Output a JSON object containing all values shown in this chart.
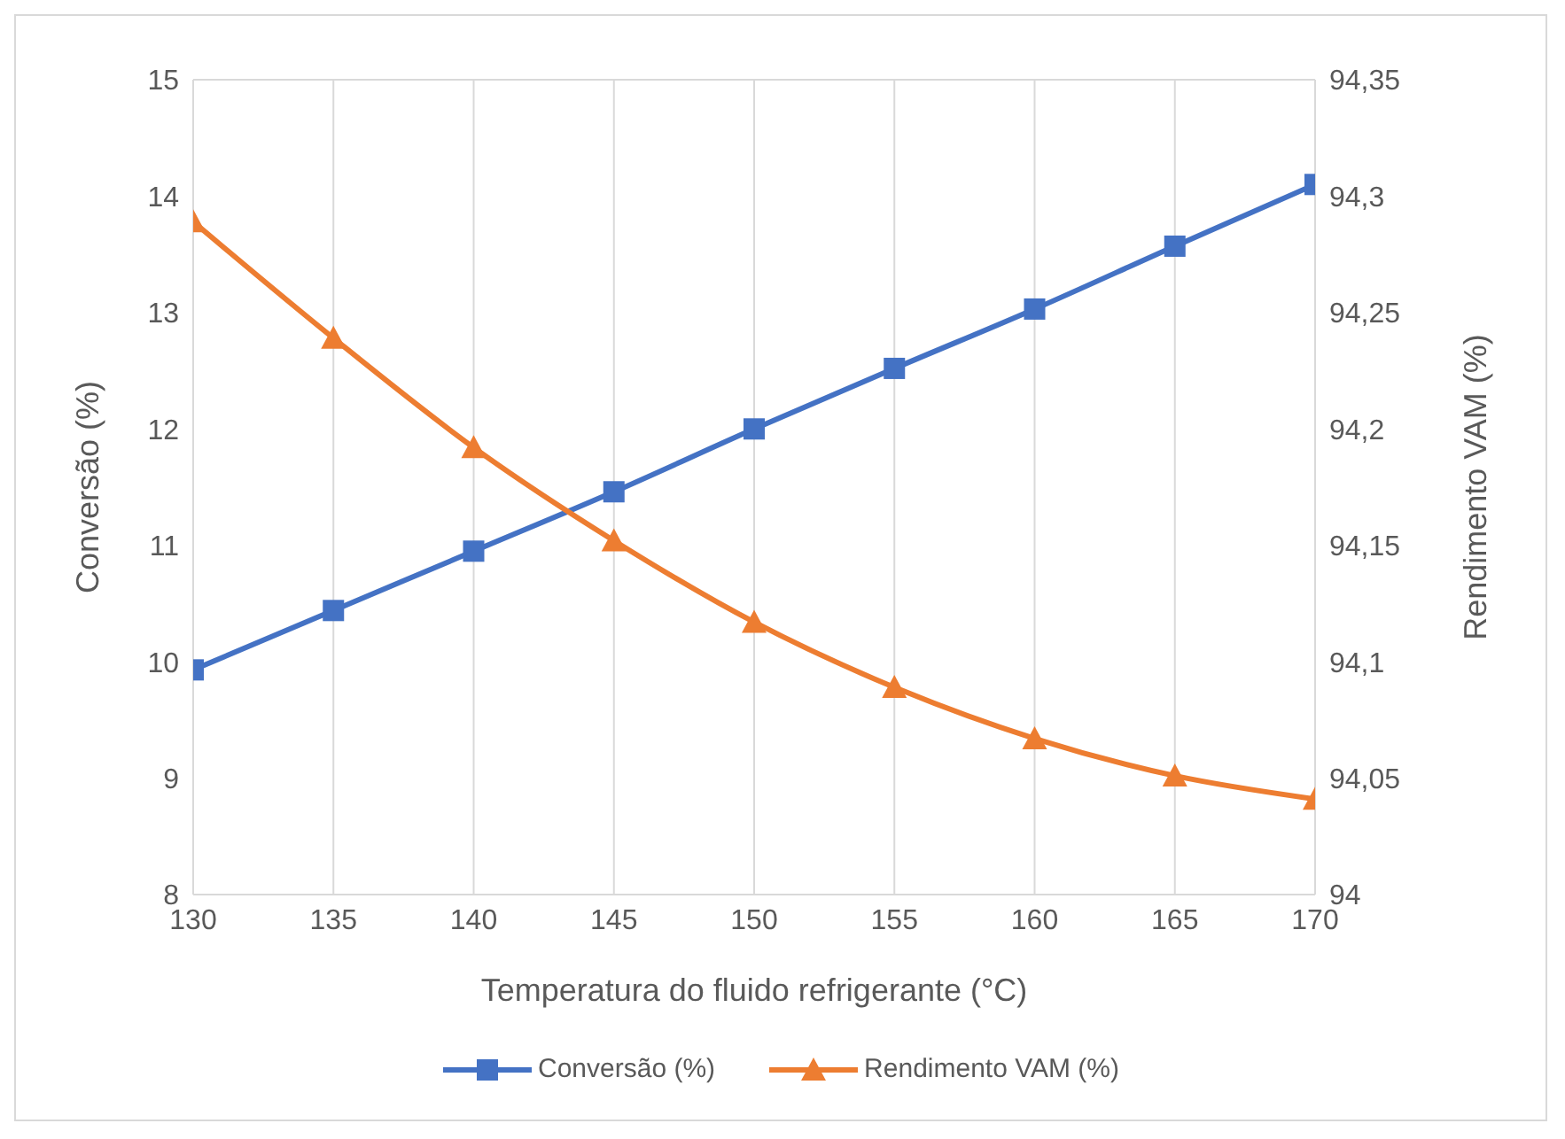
{
  "chart_data": {
    "type": "line",
    "xlabel": "Temperatura do fluido refrigerante (°C)",
    "ylabel": "Conversão (%)",
    "y2label": "Rendimento VAM (%)",
    "x": [
      130,
      135,
      140,
      145,
      150,
      155,
      160,
      165,
      170
    ],
    "xlim": [
      130,
      170
    ],
    "xticks": [
      130,
      135,
      140,
      145,
      150,
      155,
      160,
      165,
      170
    ],
    "ylim": [
      8,
      15
    ],
    "yticks": [
      8,
      9,
      10,
      11,
      12,
      13,
      14,
      15
    ],
    "y2lim": [
      94,
      94.35
    ],
    "y2ticks": [
      {
        "value": 94,
        "label": "94"
      },
      {
        "value": 94.05,
        "label": "94,05"
      },
      {
        "value": 94.1,
        "label": "94,1"
      },
      {
        "value": 94.15,
        "label": "94,15"
      },
      {
        "value": 94.2,
        "label": "94,2"
      },
      {
        "value": 94.25,
        "label": "94,25"
      },
      {
        "value": 94.3,
        "label": "94,3"
      },
      {
        "value": 94.35,
        "label": "94,35"
      }
    ],
    "grid": true,
    "legend": "bottom",
    "line_style": "solid",
    "series": [
      {
        "name": "Conversão (%)",
        "color": "#4472c4",
        "marker": "square",
        "values": [
          9.93,
          10.44,
          10.95,
          11.46,
          12.0,
          12.52,
          13.03,
          13.57,
          14.1
        ]
      },
      {
        "name": "Rendimento VAM (%)",
        "color": "#ed7d31",
        "marker": "triangle",
        "axis": "y2",
        "values": [
          94.289,
          94.239,
          94.192,
          94.152,
          94.117,
          94.089,
          94.067,
          94.051,
          94.041
        ]
      }
    ]
  }
}
